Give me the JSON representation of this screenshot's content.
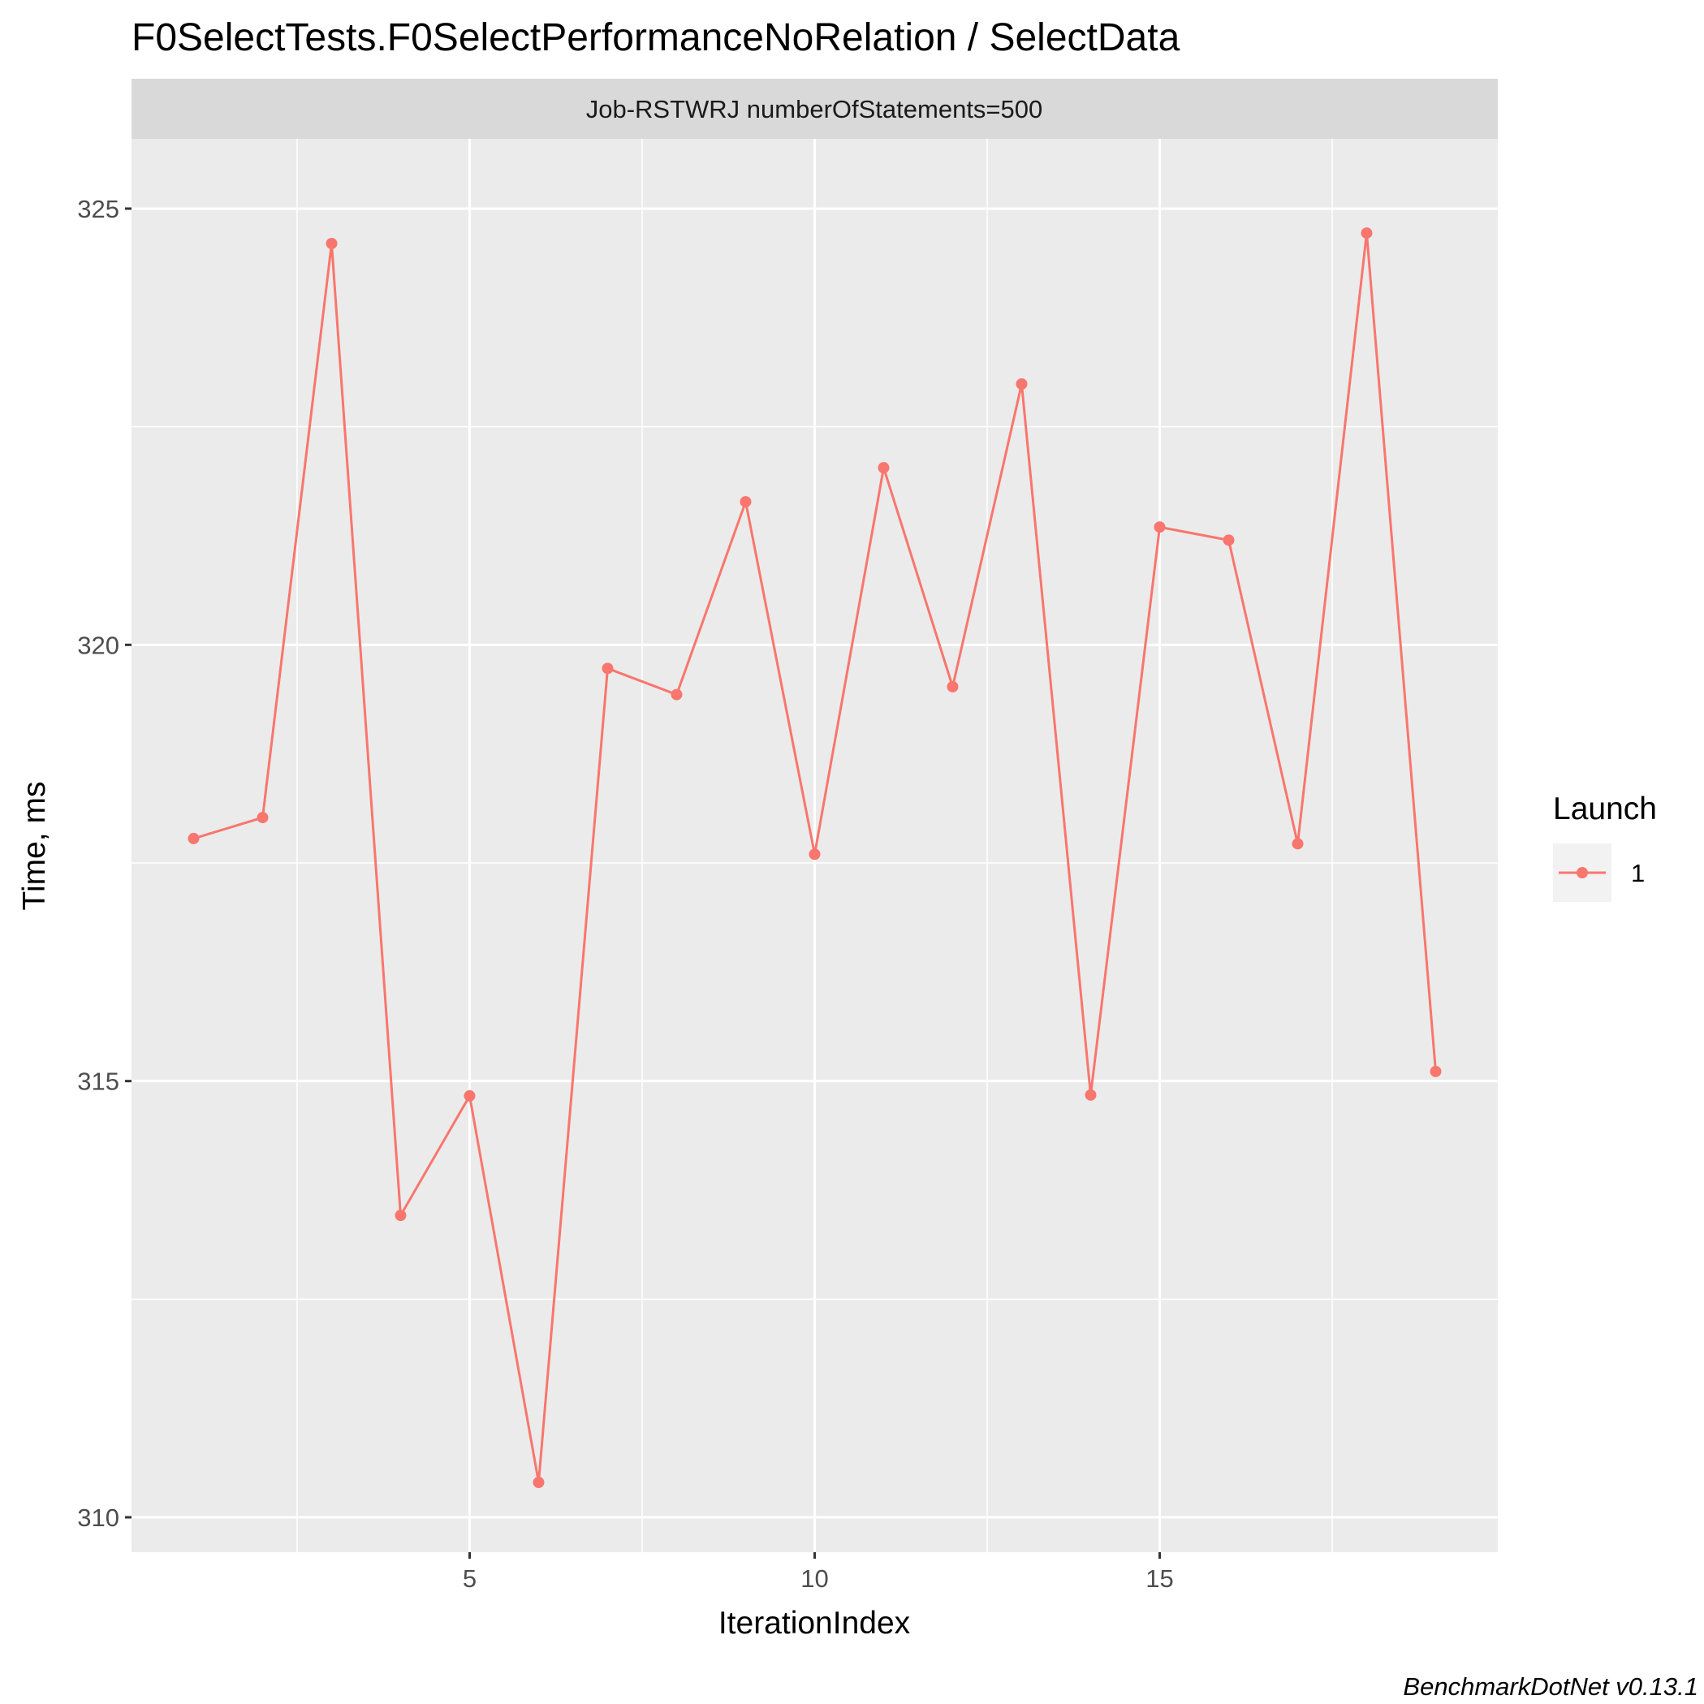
{
  "colors": {
    "series": "#F8766D",
    "panel_bg": "#EBEBEB",
    "strip_bg": "#D9D9D9",
    "grid": "#FFFFFF",
    "legend_key_bg": "#F2F2F2"
  },
  "chart_data": {
    "type": "line",
    "title": "F0SelectTests.F0SelectPerformanceNoRelation / SelectData",
    "facet_label": "Job-RSTWRJ numberOfStatements=500",
    "xlabel": "IterationIndex",
    "ylabel": "Time, ms",
    "xlim": [
      0.1,
      19.9
    ],
    "ylim": [
      309.6,
      325.8
    ],
    "x_ticks": [
      5,
      10,
      15
    ],
    "y_ticks": [
      310,
      315,
      320,
      325
    ],
    "grid": true,
    "legend": {
      "title": "Launch",
      "position": "right",
      "entries": [
        "1"
      ]
    },
    "caption": "BenchmarkDotNet v0.13.1",
    "series": [
      {
        "name": "1",
        "x": [
          1,
          2,
          3,
          4,
          5,
          6,
          7,
          8,
          9,
          10,
          11,
          12,
          13,
          14,
          15,
          16,
          17,
          18,
          19
        ],
        "values": [
          317.78,
          318.02,
          324.6,
          313.46,
          314.83,
          310.4,
          319.73,
          319.43,
          321.64,
          317.6,
          322.03,
          319.52,
          322.99,
          314.84,
          321.35,
          321.2,
          317.72,
          324.72,
          315.11
        ]
      }
    ]
  }
}
